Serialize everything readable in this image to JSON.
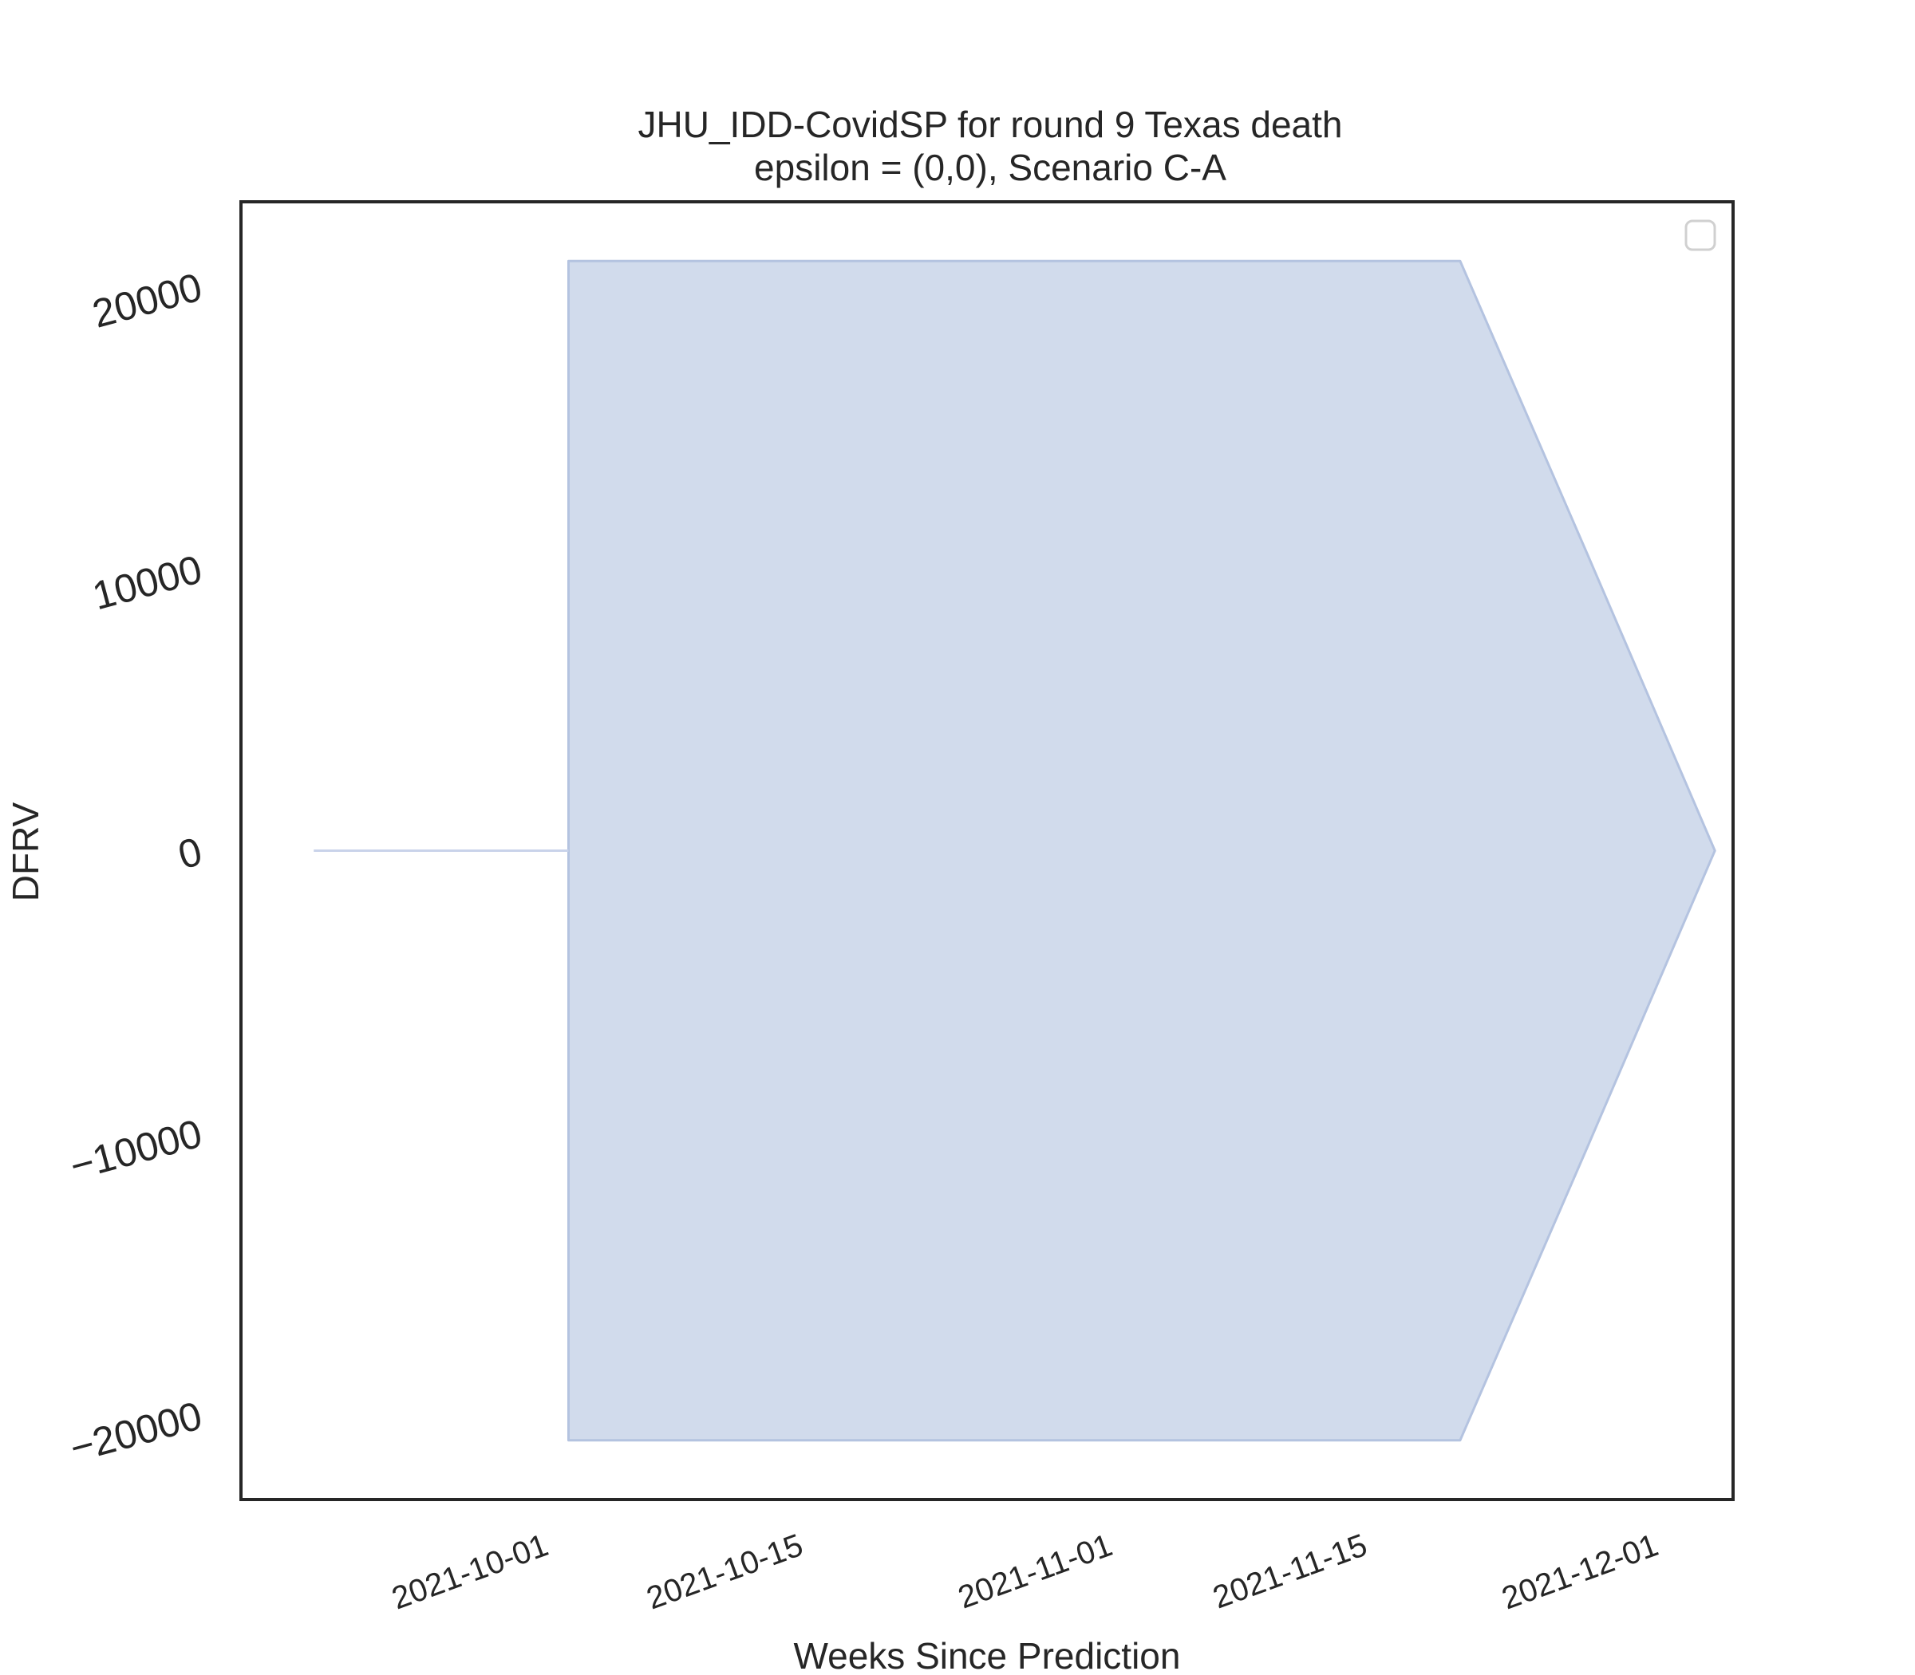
{
  "chart_data": {
    "type": "area",
    "title": "JHU_IDD-CovidSP for round 9 Texas death",
    "subtitle": "epsilon = (0,0), Scenario C-A",
    "xlabel": "Weeks Since Prediction",
    "ylabel": "DFRV",
    "x_tick_labels": [
      "2021-10-01",
      "2021-10-15",
      "2021-11-01",
      "2021-11-15",
      "2021-12-01"
    ],
    "y_tick_labels": [
      "20000",
      "10000",
      "0",
      "−10000",
      "−20000"
    ],
    "ylim": [
      -23000,
      23000
    ],
    "xlim": [
      "2021-09-14",
      "2021-12-05"
    ],
    "grid": false,
    "legend": {
      "placement": "upper-right",
      "entries": []
    },
    "colors": {
      "band_fill": "#d1dbec",
      "band_edge": "#b4c3e0",
      "line": "#c9d3ea",
      "axes": "#262626"
    },
    "series": [
      {
        "x": [
          "2021-09-18",
          "2021-09-25",
          "2021-10-02",
          "2021-10-09",
          "2021-10-16",
          "2021-10-23",
          "2021-10-30",
          "2021-11-06",
          "2021-11-13",
          "2021-11-20",
          "2021-11-27",
          "2021-12-04"
        ],
        "lower": [
          0,
          0,
          -20900,
          -20900,
          -20900,
          -20900,
          -20900,
          -20900,
          -20900,
          -20900,
          -10500,
          0
        ],
        "upper": [
          0,
          0,
          20900,
          20900,
          20900,
          20900,
          20900,
          20900,
          20900,
          20900,
          10500,
          0
        ]
      }
    ]
  }
}
